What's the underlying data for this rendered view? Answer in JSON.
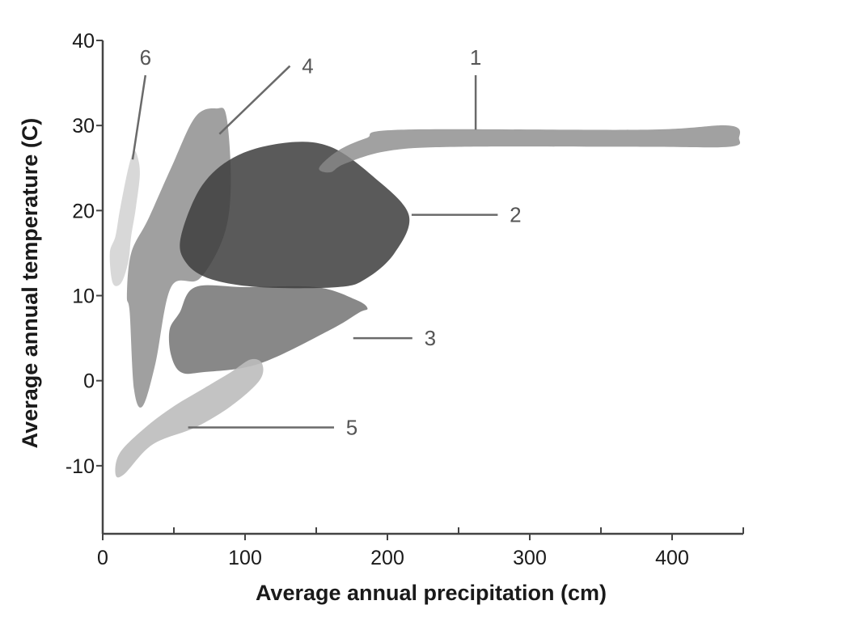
{
  "chart_data": {
    "type": "area",
    "xlabel": "Average annual precipitation (cm)",
    "ylabel": "Average annual temperature (C)",
    "xlim": [
      0,
      450
    ],
    "ylim": [
      -18,
      40
    ],
    "xticks": [
      "0",
      "100",
      "200",
      "300",
      "400"
    ],
    "yticks": [
      "40",
      "30",
      "20",
      "10",
      "0",
      "-10"
    ],
    "x_minor_ticks": [
      50,
      150,
      250,
      350,
      450
    ],
    "grid": false,
    "regions": [
      {
        "label": "4",
        "color": "#8f8f8f",
        "opacity": 0.85,
        "outline": [
          [
            19,
            8
          ],
          [
            22,
            -1
          ],
          [
            28,
            -3
          ],
          [
            37,
            2
          ],
          [
            48,
            11
          ],
          [
            68,
            12
          ],
          [
            85,
            17
          ],
          [
            90,
            23
          ],
          [
            87,
            31
          ],
          [
            80,
            32
          ],
          [
            65,
            31
          ],
          [
            48,
            25
          ],
          [
            32,
            19
          ],
          [
            20,
            15
          ],
          [
            17,
            10
          ]
        ],
        "leader": {
          "anchor": [
            82,
            29
          ],
          "label_at": [
            144,
            37
          ]
        }
      },
      {
        "label": "6",
        "color": "#d6d6d6",
        "opacity": 0.95,
        "outline": [
          [
            5,
            15
          ],
          [
            7,
            11.5
          ],
          [
            13,
            11.5
          ],
          [
            18,
            14
          ],
          [
            20,
            17
          ],
          [
            23,
            20
          ],
          [
            26,
            24
          ],
          [
            25,
            26
          ],
          [
            22,
            27
          ],
          [
            18,
            25
          ],
          [
            12,
            20
          ],
          [
            9,
            17
          ]
        ],
        "leader": {
          "anchor": [
            21,
            26
          ],
          "label_at": [
            30,
            38
          ]
        }
      },
      {
        "label": "3",
        "color": "#7b7b7b",
        "opacity": 0.9,
        "outline": [
          [
            47,
            6
          ],
          [
            48,
            3
          ],
          [
            55,
            1
          ],
          [
            70,
            1
          ],
          [
            110,
            2
          ],
          [
            160,
            6
          ],
          [
            180,
            8
          ],
          [
            186,
            8.5
          ],
          [
            178,
            9.5
          ],
          [
            150,
            11
          ],
          [
            100,
            11
          ],
          [
            65,
            11
          ],
          [
            54,
            8
          ]
        ],
        "leader": {
          "anchor": [
            176,
            5
          ],
          "label_at": [
            230,
            5
          ]
        }
      },
      {
        "label": "5",
        "color": "#bdbdbd",
        "opacity": 0.9,
        "outline": [
          [
            9,
            -11
          ],
          [
            15,
            -11
          ],
          [
            35,
            -7.5
          ],
          [
            65,
            -5.5
          ],
          [
            90,
            -3
          ],
          [
            110,
            0
          ],
          [
            112,
            2
          ],
          [
            104,
            2.5
          ],
          [
            90,
            1
          ],
          [
            70,
            -1
          ],
          [
            50,
            -3
          ],
          [
            30,
            -5.5
          ],
          [
            12,
            -8.5
          ]
        ],
        "leader": {
          "anchor": [
            60,
            -5.5
          ],
          "label_at": [
            175,
            -5.5
          ]
        }
      },
      {
        "label": "2",
        "color": "#3d3d3d",
        "opacity": 0.85,
        "outline": [
          [
            55,
            17
          ],
          [
            70,
            23
          ],
          [
            95,
            26.5
          ],
          [
            130,
            28
          ],
          [
            160,
            27.5
          ],
          [
            190,
            24
          ],
          [
            215,
            19.5
          ],
          [
            205,
            15
          ],
          [
            185,
            12
          ],
          [
            165,
            11
          ],
          [
            110,
            11
          ],
          [
            75,
            12
          ],
          [
            58,
            14
          ]
        ],
        "leader": {
          "anchor": [
            217,
            19.5
          ],
          "label_at": [
            290,
            19.5
          ]
        }
      },
      {
        "label": "1",
        "color": "#8a8a8a",
        "opacity": 0.8,
        "outline": [
          [
            152,
            25
          ],
          [
            165,
            27
          ],
          [
            185,
            28.5
          ],
          [
            210,
            29.5
          ],
          [
            380,
            29.5
          ],
          [
            440,
            30
          ],
          [
            447,
            28.5
          ],
          [
            440,
            27.5
          ],
          [
            380,
            27.5
          ],
          [
            250,
            27.5
          ],
          [
            200,
            27
          ],
          [
            170,
            25.5
          ],
          [
            160,
            24.5
          ]
        ],
        "leader": {
          "anchor": [
            262,
            29.5
          ],
          "label_at": [
            262,
            38
          ]
        }
      }
    ]
  }
}
